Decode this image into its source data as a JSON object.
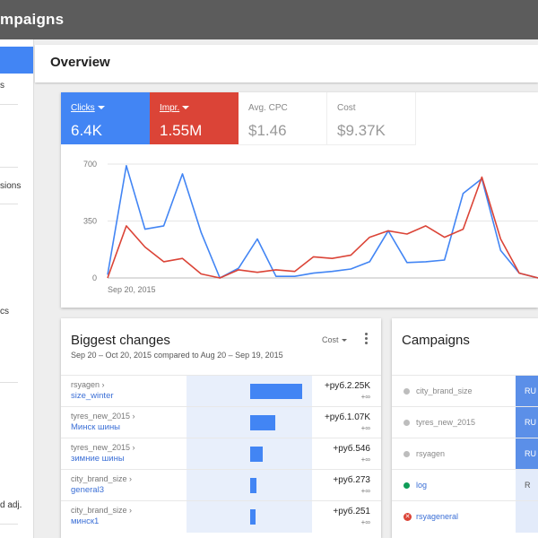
{
  "header": {
    "title": "mpaigns"
  },
  "sidebar": {
    "items": [
      "s",
      "sions",
      "cs",
      "d adj."
    ]
  },
  "overview": {
    "title": "Overview"
  },
  "metrics": {
    "clicks": {
      "label": "Clicks",
      "value": "6.4K"
    },
    "impr": {
      "label": "Impr.",
      "value": "1.55M"
    },
    "cpc": {
      "label": "Avg. CPC",
      "value": "$1.46"
    },
    "cost": {
      "label": "Cost",
      "value": "$9.37K"
    }
  },
  "chart_data": {
    "type": "line",
    "yticks": [
      "700",
      "350",
      "0"
    ],
    "ylim": [
      0,
      700
    ],
    "x_start_label": "Sep 20, 2015",
    "series": [
      {
        "color": "#4285f4",
        "values": [
          20,
          690,
          300,
          320,
          640,
          280,
          0,
          60,
          240,
          10,
          10,
          30,
          40,
          55,
          100,
          290,
          95,
          100,
          110,
          520,
          610,
          170,
          30,
          0
        ]
      },
      {
        "color": "#db4437",
        "values": [
          0,
          320,
          190,
          100,
          120,
          25,
          0,
          50,
          35,
          50,
          40,
          130,
          120,
          140,
          250,
          290,
          270,
          320,
          250,
          300,
          620,
          240,
          30,
          0
        ]
      }
    ]
  },
  "changes": {
    "title": "Biggest changes",
    "subtitle": "Sep 20 – Oct 20, 2015 compared to Aug 20 – Sep 19, 2015",
    "metric_select": "Cost",
    "rows": [
      {
        "campaign": "rsyagen ›",
        "adgroup": "size_winter",
        "value": "+руб.2.25K",
        "delta": "+∞",
        "share": 1.0
      },
      {
        "campaign": "tyres_new_2015 ›",
        "adgroup": "Минск шины",
        "value": "+руб.1.07K",
        "delta": "+∞",
        "share": 0.48
      },
      {
        "campaign": "tyres_new_2015 ›",
        "adgroup": "зимние шины",
        "value": "+руб.546",
        "delta": "+∞",
        "share": 0.24
      },
      {
        "campaign": "city_brand_size ›",
        "adgroup": "general3",
        "value": "+руб.273",
        "delta": "+∞",
        "share": 0.12
      },
      {
        "campaign": "city_brand_size ›",
        "adgroup": "минск1",
        "value": "+руб.251",
        "delta": "+∞",
        "share": 0.11
      }
    ]
  },
  "campaigns": {
    "title": "Campaigns",
    "rows": [
      {
        "name": "city_brand_size",
        "status": "paused",
        "tag": "RU"
      },
      {
        "name": "tyres_new_2015",
        "status": "paused",
        "tag": "RU"
      },
      {
        "name": "rsyagen",
        "status": "paused",
        "tag": "RU"
      },
      {
        "name": "log",
        "status": "enabled",
        "tag": "R"
      },
      {
        "name": "rsyageneral",
        "status": "removed",
        "tag": ""
      }
    ]
  }
}
